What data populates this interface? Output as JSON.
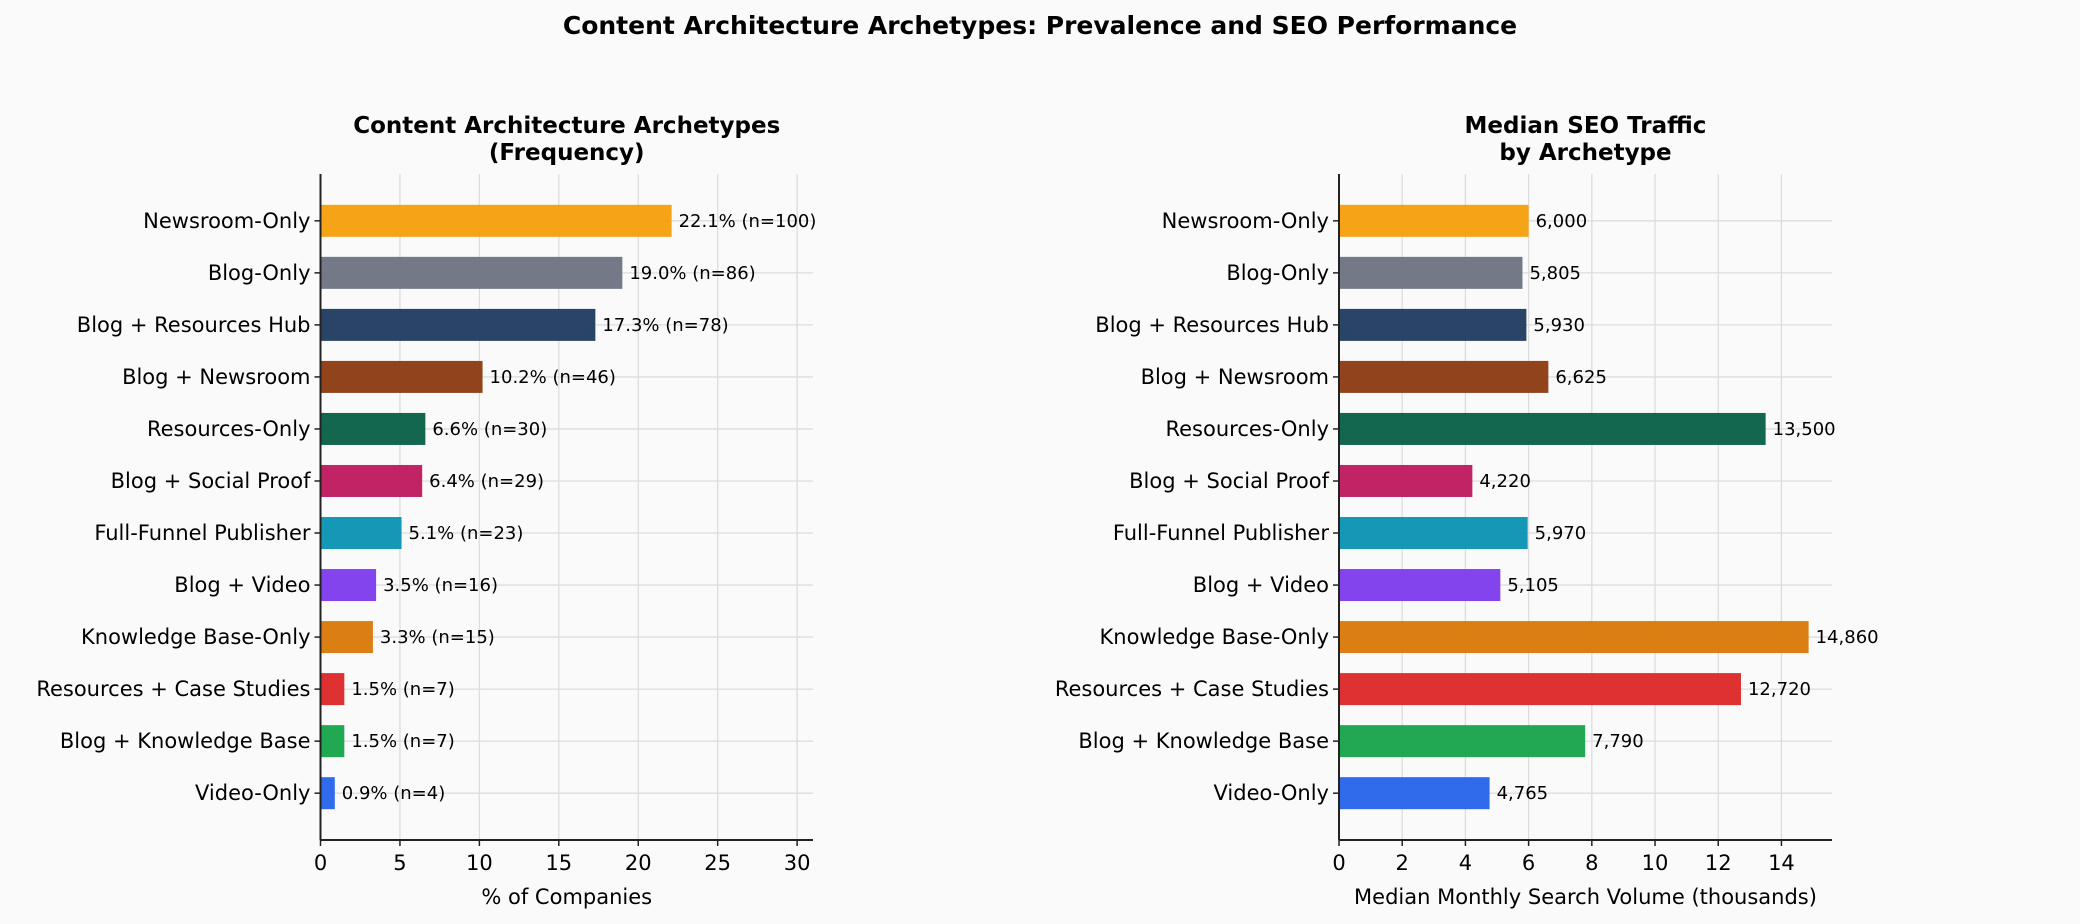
{
  "suptitle": "Content Architecture Archetypes: Prevalence and SEO Performance",
  "chart_data": [
    {
      "type": "bar",
      "orientation": "horizontal",
      "title_lines": [
        "Content Architecture Archetypes",
        "(Frequency)"
      ],
      "xlabel": "% of Companies",
      "ylabel": "",
      "xlim": [
        0,
        31
      ],
      "xticks": [
        0,
        5,
        10,
        15,
        20,
        25,
        30
      ],
      "grid": true,
      "categories": [
        "Newsroom-Only",
        "Blog-Only",
        "Blog + Resources Hub",
        "Blog + Newsroom",
        "Resources-Only",
        "Blog + Social Proof",
        "Full-Funnel Publisher",
        "Blog + Video",
        "Knowledge Base-Only",
        "Resources + Case Studies",
        "Blog + Knowledge Base",
        "Video-Only"
      ],
      "values": [
        22.1,
        19.0,
        17.3,
        10.2,
        6.6,
        6.4,
        5.1,
        3.5,
        3.3,
        1.5,
        1.5,
        0.9
      ],
      "data_labels": [
        "22.1% (n=100)",
        "19.0% (n=86)",
        "17.3% (n=78)",
        "10.2% (n=46)",
        "6.6% (n=30)",
        "6.4% (n=29)",
        "5.1% (n=23)",
        "3.5% (n=16)",
        "3.3% (n=15)",
        "1.5% (n=7)",
        "1.5% (n=7)",
        "0.9% (n=4)"
      ],
      "colors": [
        "#F59E0B",
        "#6B7280",
        "#1E3A5F",
        "#8B3A0F",
        "#065F46",
        "#BE185D",
        "#0891B2",
        "#7C3AED",
        "#D97706",
        "#DC2626",
        "#16A34A",
        "#2563EB"
      ]
    },
    {
      "type": "bar",
      "orientation": "horizontal",
      "title_lines": [
        "Median SEO Traffic",
        "by Archetype"
      ],
      "xlabel": "Median Monthly Search Volume (thousands)",
      "ylabel": "",
      "xlim": [
        0,
        15.6
      ],
      "xticks": [
        0,
        2,
        4,
        6,
        8,
        10,
        12,
        14
      ],
      "grid": true,
      "categories": [
        "Newsroom-Only",
        "Blog-Only",
        "Blog + Resources Hub",
        "Blog + Newsroom",
        "Resources-Only",
        "Blog + Social Proof",
        "Full-Funnel Publisher",
        "Blog + Video",
        "Knowledge Base-Only",
        "Resources + Case Studies",
        "Blog + Knowledge Base",
        "Video-Only"
      ],
      "values": [
        6.0,
        5.805,
        5.93,
        6.625,
        13.5,
        4.22,
        5.97,
        5.105,
        14.86,
        12.72,
        7.79,
        4.765
      ],
      "data_labels": [
        "6,000",
        "5,805",
        "5,930",
        "6,625",
        "13,500",
        "4,220",
        "5,970",
        "5,105",
        "14,860",
        "12,720",
        "7,790",
        "4,765"
      ],
      "colors": [
        "#F59E0B",
        "#6B7280",
        "#1E3A5F",
        "#8B3A0F",
        "#065F46",
        "#BE185D",
        "#0891B2",
        "#7C3AED",
        "#D97706",
        "#DC2626",
        "#16A34A",
        "#2563EB"
      ]
    }
  ]
}
